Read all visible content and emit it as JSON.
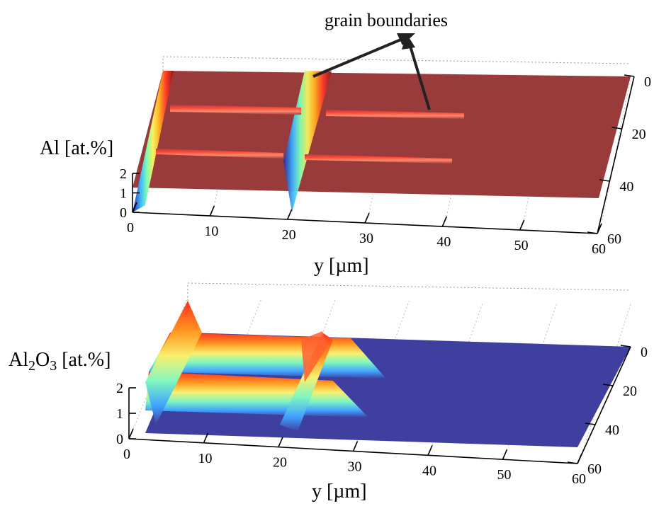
{
  "chart_data": [
    {
      "type": "surface",
      "zlabel": "Al [at.%]",
      "xlabel": "y [µm]",
      "annotation": "grain boundaries",
      "x_ticks": [
        "0",
        "10",
        "20",
        "30",
        "40",
        "50",
        "60"
      ],
      "depth_ticks": [
        "0",
        "20",
        "40",
        "60"
      ],
      "z_ticks": [
        "0",
        "1",
        "2"
      ],
      "xlim": [
        0,
        60
      ],
      "depth_lim": [
        0,
        60
      ],
      "zlim": [
        0,
        2
      ],
      "colormap": "jet",
      "surface_top_color": "#9a3b3b",
      "features": {
        "grain_boundary_y": [
          0,
          20
        ],
        "grain_boundary_depth": [
          15,
          30
        ],
        "ridge_depth_end_y": [
          38,
          40
        ],
        "plateau_value": 2,
        "groove_min_value": 0
      }
    },
    {
      "type": "surface",
      "zlabel_main": "Al",
      "zlabel_sub": "2",
      "zlabel_mid": "O",
      "zlabel_sub2": "3",
      "zlabel_tail": " [at.%]",
      "xlabel": "y [µm]",
      "x_ticks": [
        "0",
        "10",
        "20",
        "30",
        "40",
        "50",
        "60"
      ],
      "depth_ticks": [
        "0",
        "20",
        "40",
        "60"
      ],
      "z_ticks": [
        "0",
        "1",
        "2"
      ],
      "xlim": [
        0,
        60
      ],
      "depth_lim": [
        0,
        60
      ],
      "zlim": [
        0,
        2
      ],
      "colormap": "jet",
      "surface_floor_color": "#3f3f9f",
      "features": {
        "grain_boundary_y": [
          0,
          20
        ],
        "grain_boundary_depth": [
          15,
          30
        ],
        "ridge_depth_end_y": [
          26,
          26
        ],
        "peak_value": 2.2,
        "floor_value": 0
      }
    }
  ]
}
